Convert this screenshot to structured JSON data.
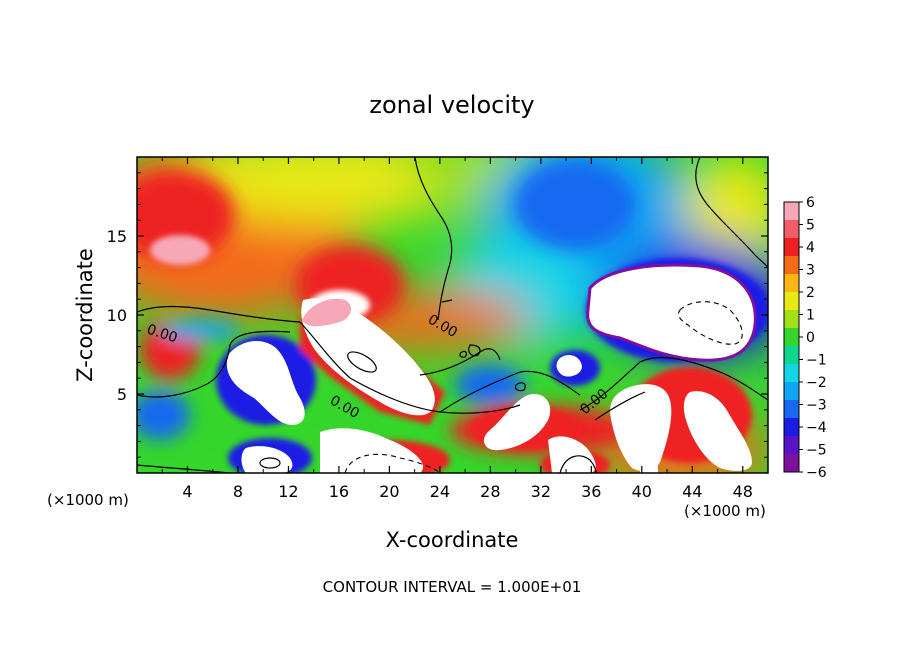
{
  "chart_data": {
    "type": "heatmap",
    "title": "zonal velocity",
    "xlabel": "X-coordinate",
    "ylabel": "Z-coordinate",
    "x_unit_left": "(×1000 m)",
    "x_unit_right": "(×1000 m)",
    "xlim": [
      0,
      50
    ],
    "ylim": [
      0,
      20
    ],
    "x_ticks": [
      4,
      8,
      12,
      16,
      20,
      24,
      28,
      32,
      36,
      40,
      44,
      48
    ],
    "y_ticks": [
      5,
      10,
      15
    ],
    "colorbar": {
      "min": -6,
      "max": 6,
      "ticks": [
        "6",
        "5",
        "4",
        "3",
        "2",
        "1",
        "0",
        "−1",
        "−2",
        "−3",
        "−4",
        "−5",
        "−6"
      ],
      "colors": [
        "#f7a8b8",
        "#f35d6a",
        "#ee2020",
        "#f46a1a",
        "#fbb614",
        "#e8e813",
        "#a3e01a",
        "#35d62b",
        "#10d58c",
        "#13d6e4",
        "#10a4f2",
        "#1769f0",
        "#1d1ce4",
        "#5a14c8",
        "#7f0f9e"
      ]
    },
    "contour_labels": [
      "0.00",
      "0.00",
      "0.00",
      "0.00"
    ],
    "footnote": "CONTOUR INTERVAL = 1.000E+01"
  }
}
